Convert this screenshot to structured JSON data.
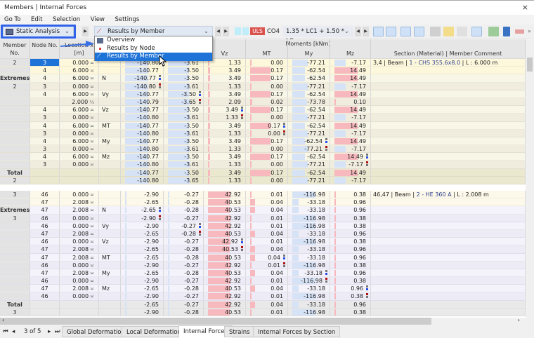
{
  "window": {
    "title": "Members | Internal Forces",
    "close": "×"
  },
  "menu": [
    "Go To",
    "Edit",
    "Selection",
    "View",
    "Settings"
  ],
  "toolbar": {
    "analysis": "Static Analysis",
    "results_mode": "Results by Member",
    "uls": "ULS",
    "combo_id": "CO4",
    "combo_formula": "1.35 * LC1 + 1.50 * LC...",
    "more": "»"
  },
  "dropdown_menu": {
    "items": [
      "Overview",
      "Results by Node",
      "Results by Member"
    ],
    "selected": "Results by Member"
  },
  "colors": {
    "accent": "#1e73d8",
    "highlight": "#2f62e8",
    "uls": "#d9534f",
    "pos_bar": "#f7b9bd",
    "neg_bar": "#d6e2f6"
  },
  "table": {
    "headers": {
      "member": "Member No.",
      "node": "Node No.",
      "location": "Location x [m]",
      "moments_group": "Moments [kNm]",
      "Vz": "Vz",
      "MT": "MT",
      "My": "My",
      "Mz": "Mz",
      "section": "Section (Material) | Member Comment"
    },
    "blocks": [
      {
        "theme": "yellow",
        "rows": [
          {
            "member": "2",
            "node": "3",
            "x": "0.000",
            "sym": "≍",
            "type": "",
            "N": "-140.80",
            "Vy": "-3.61",
            "Vz": "1.33",
            "MT": "0.00",
            "My": "-77.21",
            "Mz": "-7.17",
            "comment": "3,4 | Beam | ",
            "section": "1 - CHS 355.6x8.0",
            "length": " | L : 6.000 m",
            "kind": "first",
            "selected": true
          },
          {
            "member": "",
            "node": "4",
            "x": "6.000",
            "sym": "≍",
            "type": "",
            "N": "-140.77",
            "Vy": "-3.50",
            "Vz": "3.49",
            "MT": "0.17",
            "My": "-62.54",
            "Mz": "14.49",
            "kind": "first"
          },
          {
            "member": "Extremes",
            "node": "4",
            "x": "6.000",
            "sym": "≍",
            "type": "N",
            "N": "-140.77",
            "Vy": "-3.50",
            "Vz": "3.49",
            "MT": "0.17",
            "My": "-62.54",
            "Mz": "14.49",
            "kind": "ext",
            "mark": "N",
            "mtype": "max"
          },
          {
            "member": "2",
            "node": "3",
            "x": "0.000",
            "sym": "≍",
            "type": "",
            "N": "-140.80",
            "Vy": "-3.61",
            "Vz": "1.33",
            "MT": "0.00",
            "My": "-77.21",
            "Mz": "-7.17",
            "kind": "ext",
            "mark": "N",
            "mtype": "min"
          },
          {
            "member": "",
            "node": "4",
            "x": "6.000",
            "sym": "≍",
            "type": "Vy",
            "N": "-140.77",
            "Vy": "-3.50",
            "Vz": "3.49",
            "MT": "0.17",
            "My": "-62.54",
            "Mz": "14.49",
            "kind": "ext",
            "mark": "Vy",
            "mtype": "max"
          },
          {
            "member": "",
            "node": "",
            "x": "2.000",
            "sym": "⅓",
            "type": "",
            "N": "-140.79",
            "Vy": "-3.65",
            "Vz": "2.09",
            "MT": "0.02",
            "My": "-73.78",
            "Mz": "0.10",
            "kind": "ext",
            "mark": "Vy",
            "mtype": "min"
          },
          {
            "member": "",
            "node": "4",
            "x": "6.000",
            "sym": "≍",
            "type": "Vz",
            "N": "-140.77",
            "Vy": "-3.50",
            "Vz": "3.49",
            "MT": "0.17",
            "My": "-62.54",
            "Mz": "14.49",
            "kind": "ext",
            "mark": "Vz",
            "mtype": "max"
          },
          {
            "member": "",
            "node": "3",
            "x": "0.000",
            "sym": "≍",
            "type": "",
            "N": "-140.80",
            "Vy": "-3.61",
            "Vz": "1.33",
            "MT": "0.00",
            "My": "-77.21",
            "Mz": "-7.17",
            "kind": "ext",
            "mark": "Vz",
            "mtype": "min"
          },
          {
            "member": "",
            "node": "4",
            "x": "6.000",
            "sym": "≍",
            "type": "MT",
            "N": "-140.77",
            "Vy": "-3.50",
            "Vz": "3.49",
            "MT": "0.17",
            "My": "-62.54",
            "Mz": "14.49",
            "kind": "ext",
            "mark": "MT",
            "mtype": "max"
          },
          {
            "member": "",
            "node": "3",
            "x": "0.000",
            "sym": "≍",
            "type": "",
            "N": "-140.80",
            "Vy": "-3.61",
            "Vz": "1.33",
            "MT": "0.00",
            "My": "-77.21",
            "Mz": "-7.17",
            "kind": "ext",
            "mark": "MT",
            "mtype": "min"
          },
          {
            "member": "",
            "node": "4",
            "x": "6.000",
            "sym": "≍",
            "type": "My",
            "N": "-140.77",
            "Vy": "-3.50",
            "Vz": "3.49",
            "MT": "0.17",
            "My": "-62.54",
            "Mz": "14.49",
            "kind": "ext",
            "mark": "My",
            "mtype": "max"
          },
          {
            "member": "",
            "node": "3",
            "x": "0.000",
            "sym": "≍",
            "type": "",
            "N": "-140.80",
            "Vy": "-3.61",
            "Vz": "1.33",
            "MT": "0.00",
            "My": "-77.21",
            "Mz": "-7.17",
            "kind": "ext",
            "mark": "My",
            "mtype": "min"
          },
          {
            "member": "",
            "node": "4",
            "x": "6.000",
            "sym": "≍",
            "type": "Mz",
            "N": "-140.77",
            "Vy": "-3.50",
            "Vz": "3.49",
            "MT": "0.17",
            "My": "-62.54",
            "Mz": "14.49",
            "kind": "ext",
            "mark": "Mz",
            "mtype": "max"
          },
          {
            "member": "",
            "node": "3",
            "x": "0.000",
            "sym": "≍",
            "type": "",
            "N": "-140.80",
            "Vy": "-3.61",
            "Vz": "1.33",
            "MT": "0.00",
            "My": "-77.21",
            "Mz": "-7.17",
            "kind": "ext",
            "mark": "Mz",
            "mtype": "min"
          },
          {
            "member": "Total",
            "node": "",
            "x": "",
            "sym": "",
            "type": "",
            "N": "-140.77",
            "Vy": "-3.50",
            "Vz": "3.49",
            "MT": "0.17",
            "My": "-62.54",
            "Mz": "14.49",
            "kind": "total"
          },
          {
            "member": "2",
            "node": "",
            "x": "",
            "sym": "",
            "type": "",
            "N": "-140.80",
            "Vy": "-3.65",
            "Vz": "1.33",
            "MT": "0.00",
            "My": "-77.21",
            "Mz": "-7.17",
            "kind": "total"
          }
        ]
      },
      {
        "theme": "lavender",
        "rows": [
          {
            "member": "3",
            "node": "46",
            "x": "0.000",
            "sym": "≍",
            "type": "",
            "N": "-2.90",
            "Vy": "-0.27",
            "Vz": "42.92",
            "MT": "0.01",
            "My": "-116.98",
            "Mz": "0.38",
            "comment": "46,47 | Beam | ",
            "section": "2 - HE 360 A",
            "length": " | L : 2.008 m",
            "kind": "first"
          },
          {
            "member": "",
            "node": "47",
            "x": "2.008",
            "sym": "≍",
            "type": "",
            "N": "-2.65",
            "Vy": "-0.28",
            "Vz": "40.53",
            "MT": "0.04",
            "My": "-33.18",
            "Mz": "0.96",
            "kind": "first"
          },
          {
            "member": "Extremes",
            "node": "47",
            "x": "2.008",
            "sym": "≍",
            "type": "N",
            "N": "-2.65",
            "Vy": "-0.28",
            "Vz": "40.53",
            "MT": "0.04",
            "My": "-33.18",
            "Mz": "0.96",
            "kind": "ext",
            "mark": "N",
            "mtype": "max"
          },
          {
            "member": "3",
            "node": "46",
            "x": "0.000",
            "sym": "≍",
            "type": "",
            "N": "-2.90",
            "Vy": "-0.27",
            "Vz": "42.92",
            "MT": "0.01",
            "My": "-116.98",
            "Mz": "0.38",
            "kind": "ext",
            "mark": "N",
            "mtype": "min"
          },
          {
            "member": "",
            "node": "46",
            "x": "0.000",
            "sym": "≍",
            "type": "Vy",
            "N": "-2.90",
            "Vy": "-0.27",
            "Vz": "42.92",
            "MT": "0.01",
            "My": "-116.98",
            "Mz": "0.38",
            "kind": "ext",
            "mark": "Vy",
            "mtype": "max"
          },
          {
            "member": "",
            "node": "47",
            "x": "2.008",
            "sym": "≍",
            "type": "",
            "N": "-2.65",
            "Vy": "-0.28",
            "Vz": "40.53",
            "MT": "0.04",
            "My": "-33.18",
            "Mz": "0.96",
            "kind": "ext",
            "mark": "Vy",
            "mtype": "min"
          },
          {
            "member": "",
            "node": "46",
            "x": "0.000",
            "sym": "≍",
            "type": "Vz",
            "N": "-2.90",
            "Vy": "-0.27",
            "Vz": "42.92",
            "MT": "0.01",
            "My": "-116.98",
            "Mz": "0.38",
            "kind": "ext",
            "mark": "Vz",
            "mtype": "max"
          },
          {
            "member": "",
            "node": "47",
            "x": "2.008",
            "sym": "≍",
            "type": "",
            "N": "-2.65",
            "Vy": "-0.28",
            "Vz": "40.53",
            "MT": "0.04",
            "My": "-33.18",
            "Mz": "0.96",
            "kind": "ext",
            "mark": "Vz",
            "mtype": "min"
          },
          {
            "member": "",
            "node": "47",
            "x": "2.008",
            "sym": "≍",
            "type": "MT",
            "N": "-2.65",
            "Vy": "-0.28",
            "Vz": "40.53",
            "MT": "0.04",
            "My": "-33.18",
            "Mz": "0.96",
            "kind": "ext",
            "mark": "MT",
            "mtype": "max"
          },
          {
            "member": "",
            "node": "46",
            "x": "0.000",
            "sym": "≍",
            "type": "",
            "N": "-2.90",
            "Vy": "-0.27",
            "Vz": "42.92",
            "MT": "0.01",
            "My": "-116.98",
            "Mz": "0.38",
            "kind": "ext",
            "mark": "MT",
            "mtype": "min"
          },
          {
            "member": "",
            "node": "47",
            "x": "2.008",
            "sym": "≍",
            "type": "My",
            "N": "-2.65",
            "Vy": "-0.28",
            "Vz": "40.53",
            "MT": "0.04",
            "My": "-33.18",
            "Mz": "0.96",
            "kind": "ext",
            "mark": "My",
            "mtype": "max"
          },
          {
            "member": "",
            "node": "46",
            "x": "0.000",
            "sym": "≍",
            "type": "",
            "N": "-2.90",
            "Vy": "-0.27",
            "Vz": "42.92",
            "MT": "0.01",
            "My": "-116.98",
            "Mz": "0.38",
            "kind": "ext",
            "mark": "My",
            "mtype": "min"
          },
          {
            "member": "",
            "node": "47",
            "x": "2.008",
            "sym": "≍",
            "type": "Mz",
            "N": "-2.65",
            "Vy": "-0.28",
            "Vz": "40.53",
            "MT": "0.04",
            "My": "-33.18",
            "Mz": "0.96",
            "kind": "ext",
            "mark": "Mz",
            "mtype": "max"
          },
          {
            "member": "",
            "node": "46",
            "x": "0.000",
            "sym": "≍",
            "type": "",
            "N": "-2.90",
            "Vy": "-0.27",
            "Vz": "42.92",
            "MT": "0.01",
            "My": "-116.98",
            "Mz": "0.38",
            "kind": "ext",
            "mark": "Mz",
            "mtype": "min"
          },
          {
            "member": "Total",
            "node": "",
            "x": "",
            "sym": "",
            "type": "",
            "N": "-2.65",
            "Vy": "-0.27",
            "Vz": "42.92",
            "MT": "0.04",
            "My": "-33.18",
            "Mz": "0.96",
            "kind": "total"
          },
          {
            "member": "3",
            "node": "",
            "x": "",
            "sym": "",
            "type": "",
            "N": "-2.90",
            "Vy": "-0.28",
            "Vz": "40.53",
            "MT": "0.01",
            "My": "-116.98",
            "Mz": "0.38",
            "kind": "total"
          }
        ]
      }
    ]
  },
  "pager": {
    "text": "3 of 5"
  },
  "tabs": [
    {
      "label": "Global Deformations"
    },
    {
      "label": "Local Deformations"
    },
    {
      "label": "Internal Forces",
      "active": true
    },
    {
      "label": "Strains"
    },
    {
      "label": "Internal Forces by Section"
    }
  ]
}
